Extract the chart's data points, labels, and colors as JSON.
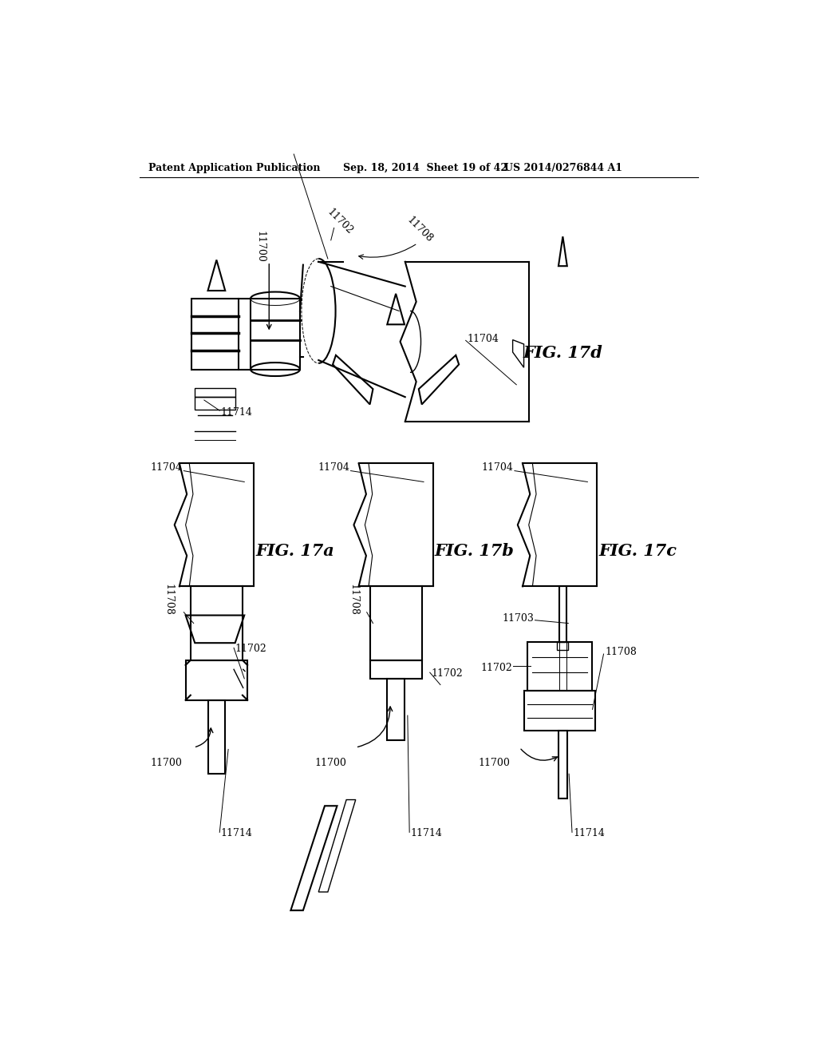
{
  "header_left": "Patent Application Publication",
  "header_mid": "Sep. 18, 2014  Sheet 19 of 42",
  "header_right": "US 2014/0276844 A1",
  "fig_d_label": "FIG. 17d",
  "fig_a_label": "FIG. 17a",
  "fig_b_label": "FIG. 17b",
  "fig_c_label": "FIG. 17c",
  "bg_color": "#ffffff",
  "line_color": "#000000"
}
